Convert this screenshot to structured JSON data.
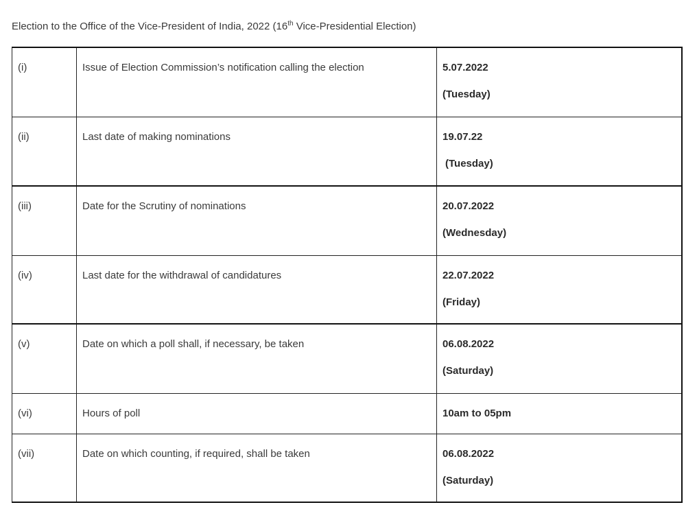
{
  "title": {
    "prefix": "Election to the Office of the Vice-President of India, 2022 (16",
    "sup": "th",
    "suffix": " Vice-Presidential Election)"
  },
  "rows": [
    {
      "num": "(i)",
      "event": "Issue of Election Commission’s notification calling the election",
      "date": "5.07.2022",
      "day": "(Tuesday)"
    },
    {
      "num": "(ii)",
      "event": "Last date of making nominations",
      "date": "19.07.22",
      "day": "(Tuesday)"
    },
    {
      "num": "(iii)",
      "event": "Date for the Scrutiny of nominations",
      "date": "20.07.2022",
      "day": "(Wednesday)"
    },
    {
      "num": "(iv)",
      "event": "Last date for the withdrawal of candidatures",
      "date": "22.07.2022",
      "day": "(Friday)"
    },
    {
      "num": "(v)",
      "event": "Date on which a poll shall, if necessary, be taken",
      "date": "06.08.2022",
      "day": "(Saturday)"
    },
    {
      "num": "(vi)",
      "event": "Hours of poll",
      "date": "10am to 05pm"
    },
    {
      "num": "(vii)",
      "event": "Date on which counting, if required, shall be taken",
      "date": "06.08.2022",
      "day": "(Saturday)"
    }
  ]
}
